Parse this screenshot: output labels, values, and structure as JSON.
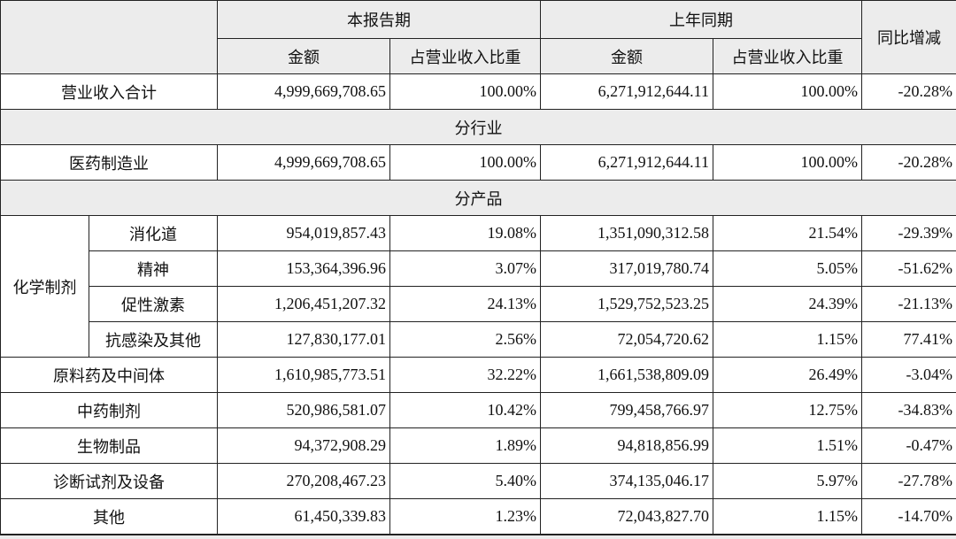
{
  "header": {
    "top": [
      "本报告期",
      "上年同期",
      "同比增减"
    ],
    "sub": [
      "金额",
      "占营业收入比重",
      "金额",
      "占营业收入比重"
    ]
  },
  "rows": [
    {
      "label": "营业收入合计",
      "cells": [
        "4,999,669,708.65",
        "100.00%",
        "6,271,912,644.11",
        "100.00%",
        "-20.28%"
      ]
    },
    {
      "section": "分行业"
    },
    {
      "label": "医药制造业",
      "cells": [
        "4,999,669,708.65",
        "100.00%",
        "6,271,912,644.11",
        "100.00%",
        "-20.28%"
      ]
    },
    {
      "section": "分产品"
    },
    {
      "group": "化学制剂",
      "rows": [
        {
          "label": "消化道",
          "cells": [
            "954,019,857.43",
            "19.08%",
            "1,351,090,312.58",
            "21.54%",
            "-29.39%"
          ]
        },
        {
          "label": "精神",
          "cells": [
            "153,364,396.96",
            "3.07%",
            "317,019,780.74",
            "5.05%",
            "-51.62%"
          ]
        },
        {
          "label": "促性激素",
          "cells": [
            "1,206,451,207.32",
            "24.13%",
            "1,529,752,523.25",
            "24.39%",
            "-21.13%"
          ]
        },
        {
          "label": "抗感染及其他",
          "cells": [
            "127,830,177.01",
            "2.56%",
            "72,054,720.62",
            "1.15%",
            "77.41%"
          ]
        }
      ]
    },
    {
      "label": "原料药及中间体",
      "cells": [
        "1,610,985,773.51",
        "32.22%",
        "1,661,538,809.09",
        "26.49%",
        "-3.04%"
      ]
    },
    {
      "label": "中药制剂",
      "cells": [
        "520,986,581.07",
        "10.42%",
        "799,458,766.97",
        "12.75%",
        "-34.83%"
      ]
    },
    {
      "label": "生物制品",
      "cells": [
        "94,372,908.29",
        "1.89%",
        "94,818,856.99",
        "1.51%",
        "-0.47%"
      ]
    },
    {
      "label": "诊断试剂及设备",
      "cells": [
        "270,208,467.23",
        "5.40%",
        "374,135,046.17",
        "5.97%",
        "-27.78%"
      ]
    },
    {
      "label": "其他",
      "cells": [
        "61,450,339.83",
        "1.23%",
        "72,043,827.70",
        "1.15%",
        "-14.70%"
      ]
    }
  ]
}
